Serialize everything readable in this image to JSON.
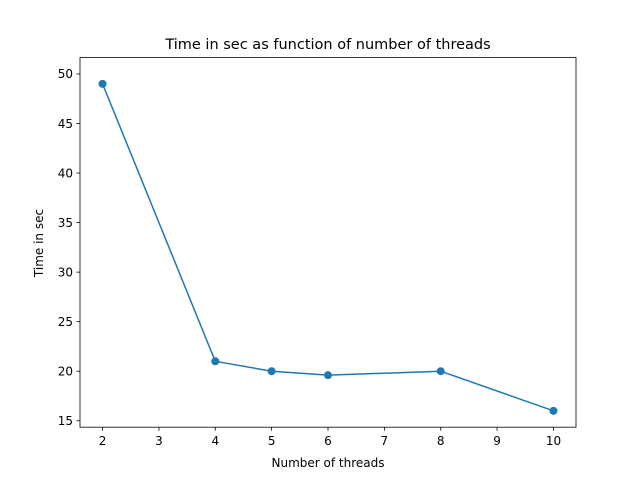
{
  "chart_data": {
    "type": "line",
    "title": "Time in sec as function of number of threads",
    "xlabel": "Number of threads",
    "ylabel": "Time in sec",
    "xlim": [
      1.6,
      10.4
    ],
    "ylim": [
      14.35,
      51.65
    ],
    "xticks": [
      2,
      3,
      4,
      5,
      6,
      7,
      8,
      9,
      10
    ],
    "yticks": [
      15,
      20,
      25,
      30,
      35,
      40,
      45,
      50
    ],
    "grid": false,
    "series": [
      {
        "color": "#1f77b4",
        "marker": "circle",
        "x": [
          2,
          4,
          5,
          6,
          8,
          10
        ],
        "y": [
          49,
          21,
          20,
          19.6,
          20,
          16
        ]
      }
    ]
  }
}
